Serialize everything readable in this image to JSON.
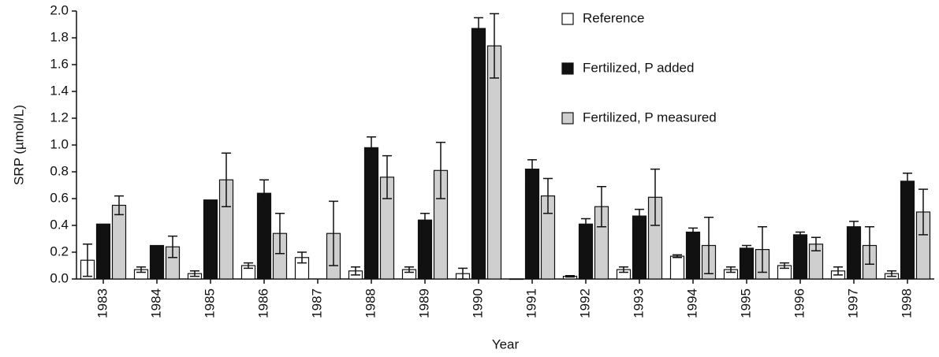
{
  "chart_data": {
    "type": "bar",
    "x_label": "Year",
    "y_label": "SRP (µmol/L)",
    "categories": [
      "1983",
      "1984",
      "1985",
      "1986",
      "1987",
      "1988",
      "1989",
      "1990",
      "1991",
      "1992",
      "1993",
      "1994",
      "1995",
      "1996",
      "1997",
      "1998"
    ],
    "series": [
      {
        "name": "Reference",
        "color": "#ffffff",
        "values": [
          0.14,
          0.07,
          0.04,
          0.1,
          0.16,
          0.06,
          0.07,
          0.04,
          0.0,
          0.02,
          0.07,
          0.17,
          0.07,
          0.1,
          0.06,
          0.04
        ],
        "errors": [
          0.12,
          0.02,
          0.02,
          0.02,
          0.04,
          0.03,
          0.02,
          0.04,
          0.0,
          0.005,
          0.02,
          0.01,
          0.02,
          0.02,
          0.03,
          0.02
        ]
      },
      {
        "name": "Fertilized, P added",
        "color": "#111111",
        "values": [
          0.41,
          0.25,
          0.59,
          0.64,
          null,
          0.98,
          0.44,
          1.87,
          0.82,
          0.41,
          0.47,
          0.35,
          0.23,
          0.33,
          0.39,
          0.73
        ],
        "errors": [
          0.0,
          0.0,
          0.0,
          0.1,
          null,
          0.08,
          0.05,
          0.08,
          0.07,
          0.04,
          0.05,
          0.03,
          0.02,
          0.02,
          0.04,
          0.06
        ]
      },
      {
        "name": "Fertilized, P measured",
        "color": "#cfcfcf",
        "values": [
          0.55,
          0.24,
          0.74,
          0.34,
          0.34,
          0.76,
          0.81,
          1.74,
          0.62,
          0.54,
          0.61,
          0.25,
          0.22,
          0.26,
          0.25,
          0.5
        ],
        "errors": [
          0.07,
          0.08,
          0.2,
          0.15,
          0.24,
          0.16,
          0.21,
          0.24,
          0.13,
          0.15,
          0.21,
          0.21,
          0.17,
          0.05,
          0.14,
          0.17
        ]
      }
    ],
    "ylim": [
      0,
      2.0
    ],
    "yticks": [
      {
        "value": 0,
        "label": "0.0"
      },
      {
        "value": 0.2,
        "label": "0.2"
      },
      {
        "value": 0.4,
        "label": "0.4"
      },
      {
        "value": 0.6,
        "label": "0.6"
      },
      {
        "value": 0.8,
        "label": "0.8"
      },
      {
        "value": 1.0,
        "label": "1.0"
      },
      {
        "value": 1.2,
        "label": "1.2"
      },
      {
        "value": 1.4,
        "label": "1.4"
      },
      {
        "value": 1.6,
        "label": "1.6"
      },
      {
        "value": 1.8,
        "label": "1.8"
      },
      {
        "value": 2.0,
        "label": "2.0"
      }
    ],
    "legend": "top-right"
  }
}
